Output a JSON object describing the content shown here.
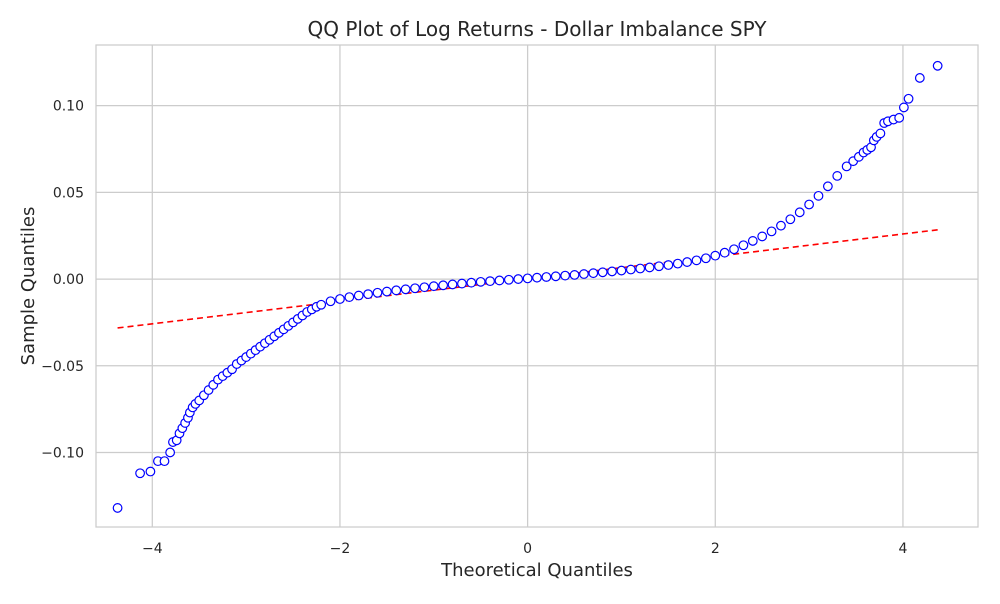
{
  "chart_data": {
    "type": "scatter",
    "title": "QQ Plot of Log Returns - Dollar Imbalance SPY",
    "xlabel": "Theoretical Quantiles",
    "ylabel": "Sample Quantiles",
    "xlim": [
      -4.6,
      4.8
    ],
    "ylim": [
      -0.143,
      0.135
    ],
    "x_ticks": [
      -4,
      -2,
      0,
      2,
      4
    ],
    "x_tick_labels": [
      "−4",
      "−2",
      "0",
      "2",
      "4"
    ],
    "y_ticks": [
      -0.1,
      -0.05,
      0.0,
      0.05,
      0.1
    ],
    "y_tick_labels": [
      "−0.10",
      "−0.05",
      "0.00",
      "0.05",
      "0.10"
    ],
    "grid": true,
    "legend": "none",
    "series": [
      {
        "kind": "points",
        "marker": "open-circle",
        "color": "#0000ff",
        "points": [
          [
            -4.37,
            -0.132
          ],
          [
            -4.13,
            -0.112
          ],
          [
            -4.02,
            -0.111
          ],
          [
            -3.94,
            -0.105
          ],
          [
            -3.87,
            -0.105
          ],
          [
            -3.81,
            -0.1
          ],
          [
            -3.78,
            -0.094
          ],
          [
            -3.74,
            -0.093
          ],
          [
            -3.71,
            -0.089
          ],
          [
            -3.68,
            -0.086
          ],
          [
            -3.65,
            -0.083
          ],
          [
            -3.62,
            -0.08
          ],
          [
            -3.6,
            -0.077
          ],
          [
            -3.57,
            -0.074
          ],
          [
            -3.54,
            -0.072
          ],
          [
            -3.5,
            -0.07
          ],
          [
            -3.45,
            -0.067
          ],
          [
            -3.4,
            -0.064
          ],
          [
            -3.35,
            -0.061
          ],
          [
            -3.3,
            -0.058
          ],
          [
            -3.25,
            -0.056
          ],
          [
            -3.2,
            -0.054
          ],
          [
            -3.15,
            -0.052
          ],
          [
            -3.1,
            -0.049
          ],
          [
            -3.05,
            -0.047
          ],
          [
            -3.0,
            -0.045
          ],
          [
            -2.95,
            -0.043
          ],
          [
            -2.9,
            -0.041
          ],
          [
            -2.85,
            -0.039
          ],
          [
            -2.8,
            -0.037
          ],
          [
            -2.75,
            -0.035
          ],
          [
            -2.7,
            -0.033
          ],
          [
            -2.65,
            -0.031
          ],
          [
            -2.6,
            -0.029
          ],
          [
            -2.55,
            -0.027
          ],
          [
            -2.5,
            -0.025
          ],
          [
            -2.45,
            -0.023
          ],
          [
            -2.4,
            -0.021
          ],
          [
            -2.35,
            -0.019
          ],
          [
            -2.3,
            -0.0175
          ],
          [
            -2.25,
            -0.016
          ],
          [
            -2.2,
            -0.0148
          ],
          [
            -2.1,
            -0.0128
          ],
          [
            -2.0,
            -0.0115
          ],
          [
            -1.9,
            -0.0104
          ],
          [
            -1.8,
            -0.0095
          ],
          [
            -1.7,
            -0.0087
          ],
          [
            -1.6,
            -0.0079
          ],
          [
            -1.5,
            -0.0072
          ],
          [
            -1.4,
            -0.0065
          ],
          [
            -1.3,
            -0.0059
          ],
          [
            -1.2,
            -0.0053
          ],
          [
            -1.1,
            -0.0047
          ],
          [
            -1.0,
            -0.0041
          ],
          [
            -0.9,
            -0.0036
          ],
          [
            -0.8,
            -0.0031
          ],
          [
            -0.7,
            -0.0026
          ],
          [
            -0.6,
            -0.0021
          ],
          [
            -0.5,
            -0.0016
          ],
          [
            -0.4,
            -0.0012
          ],
          [
            -0.3,
            -0.0008
          ],
          [
            -0.2,
            -0.0004
          ],
          [
            -0.1,
            0.0
          ],
          [
            0.0,
            0.0004
          ],
          [
            0.1,
            0.0008
          ],
          [
            0.2,
            0.0012
          ],
          [
            0.3,
            0.0016
          ],
          [
            0.4,
            0.002
          ],
          [
            0.5,
            0.0024
          ],
          [
            0.6,
            0.0029
          ],
          [
            0.7,
            0.0034
          ],
          [
            0.8,
            0.0039
          ],
          [
            0.9,
            0.0044
          ],
          [
            1.0,
            0.0049
          ],
          [
            1.1,
            0.0055
          ],
          [
            1.2,
            0.0061
          ],
          [
            1.3,
            0.0067
          ],
          [
            1.4,
            0.0074
          ],
          [
            1.5,
            0.0081
          ],
          [
            1.6,
            0.0089
          ],
          [
            1.7,
            0.0098
          ],
          [
            1.8,
            0.0108
          ],
          [
            1.9,
            0.012
          ],
          [
            2.0,
            0.0135
          ],
          [
            2.1,
            0.0152
          ],
          [
            2.2,
            0.0172
          ],
          [
            2.3,
            0.0195
          ],
          [
            2.4,
            0.022
          ],
          [
            2.5,
            0.0246
          ],
          [
            2.6,
            0.0275
          ],
          [
            2.7,
            0.0308
          ],
          [
            2.8,
            0.0345
          ],
          [
            2.9,
            0.0385
          ],
          [
            3.0,
            0.043
          ],
          [
            3.1,
            0.048
          ],
          [
            3.2,
            0.0535
          ],
          [
            3.3,
            0.0595
          ],
          [
            3.4,
            0.065
          ],
          [
            3.47,
            0.068
          ],
          [
            3.53,
            0.0705
          ],
          [
            3.58,
            0.073
          ],
          [
            3.62,
            0.0745
          ],
          [
            3.66,
            0.076
          ],
          [
            3.69,
            0.08
          ],
          [
            3.72,
            0.082
          ],
          [
            3.76,
            0.084
          ],
          [
            3.8,
            0.09
          ],
          [
            3.84,
            0.091
          ],
          [
            3.9,
            0.092
          ],
          [
            3.96,
            0.093
          ],
          [
            4.01,
            0.099
          ],
          [
            4.06,
            0.104
          ],
          [
            4.18,
            0.116
          ],
          [
            4.37,
            0.123
          ]
        ]
      },
      {
        "kind": "reference-line",
        "style": "dashed",
        "color": "#ff0000",
        "points": [
          [
            -4.37,
            -0.0282
          ],
          [
            4.37,
            0.0284
          ]
        ]
      }
    ]
  }
}
